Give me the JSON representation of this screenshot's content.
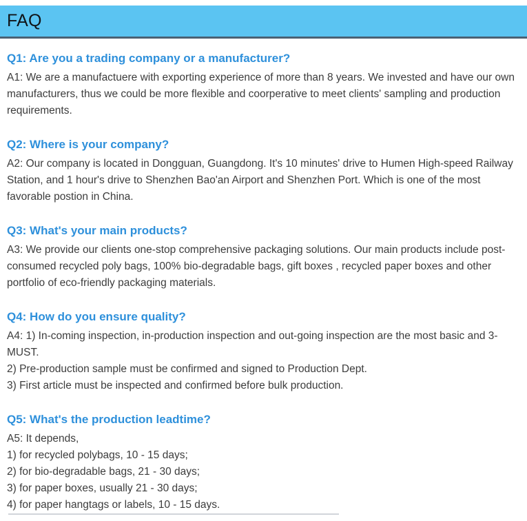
{
  "header": {
    "title": "FAQ"
  },
  "colors": {
    "bar_bg": "#5BC4F2",
    "bar_border": "#4A6173",
    "question_blue": "#2E90DB",
    "body_text": "#3C3C3C"
  },
  "faqs": [
    {
      "question": "Q1: Are you a trading company or a manufacturer?",
      "answer_lines": [
        "A1: We are a manufactuere with exporting experience of more than 8 years. We invested and have our own manufacturers, thus we could be more flexible and coorperative to meet clients' sampling and production requirements."
      ]
    },
    {
      "question": "Q2: Where is your company?",
      "answer_lines": [
        "A2: Our company is located in Dongguan, Guangdong. It's 10 minutes' drive to Humen High-speed Railway Station, and 1 hour's drive to Shenzhen Bao'an Airport and Shenzhen Port. Which is one of the most favorable postion in China."
      ]
    },
    {
      "question": "Q3: What's your main products?",
      "answer_lines": [
        "A3: We provide our clients one-stop comprehensive packaging solutions. Our main products include post-consumed recycled poly bags, 100% bio-degradable bags, gift boxes , recycled paper boxes and other portfolio of eco-friendly packaging materials."
      ]
    },
    {
      "question": "Q4: How do you ensure quality?",
      "answer_lines": [
        "A4: 1) In-coming inspection, in-production inspection and out-going inspection are the most basic and 3-MUST.",
        "2) Pre-production sample must be confirmed and signed to Production Dept.",
        "3) First article must be inspected and confirmed before bulk production."
      ]
    },
    {
      "question": "Q5: What's the production leadtime?",
      "answer_lines": [
        "A5: It depends,",
        "1) for recycled polybags, 10 - 15 days;",
        "2) for bio-degradable bags, 21 - 30 days;",
        "3) for paper boxes, usually 21 - 30 days;",
        "4) for paper hangtags or labels, 10 - 15 days."
      ]
    }
  ]
}
